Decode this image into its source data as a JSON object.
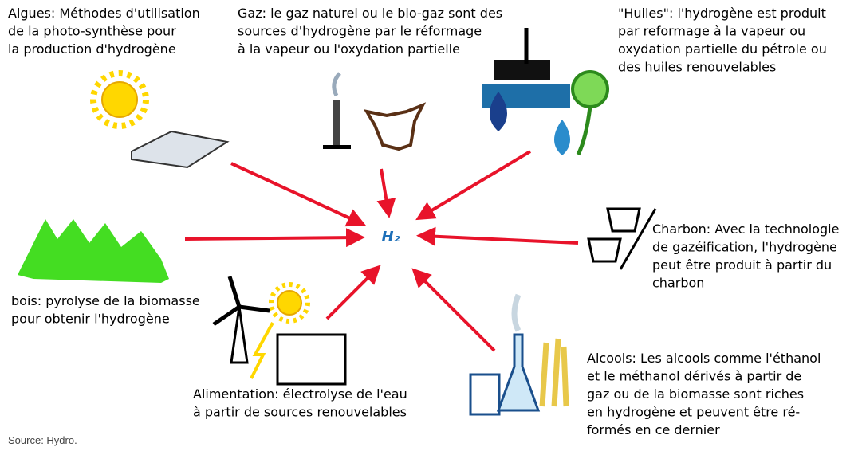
{
  "center": "H₂",
  "nodes": [
    {
      "lines": [
        "Algues: Méthodes d'utilisation",
        "de la photo-synthèse pour",
        "la production d'hydrogène"
      ]
    },
    {
      "lines": [
        "Gaz: le gaz naturel ou le bio-gaz sont des",
        "sources d'hydrogène par le réformage",
        "à la vapeur ou l'oxydation partielle"
      ]
    },
    {
      "lines": [
        "\"Huiles\": l'hydrogène est produit",
        "par reformage à la vapeur ou",
        "oxydation partielle du pétrole ou",
        " des huiles renouvelables"
      ]
    },
    {
      "lines": [
        "Charbon: Avec la technologie",
        "de gazéification, l'hydrogène",
        "peut être produit à partir du",
        "charbon"
      ]
    },
    {
      "lines": [
        "bois: pyrolyse de la biomasse",
        "pour obtenir l'hydrogène"
      ]
    },
    {
      "lines": [
        "Alimentation: électrolyse de l'eau",
        "à partir de sources renouvelables"
      ]
    },
    {
      "lines": [
        "Alcools: Les alcools comme l'éthanol",
        "et le méthanol dérivés à partir de",
        "gaz ou de la biomasse sont riches",
        "en hydrogène et peuvent être ré-",
        "formés en ce dernier"
      ]
    }
  ],
  "source": "Source: Hydro."
}
